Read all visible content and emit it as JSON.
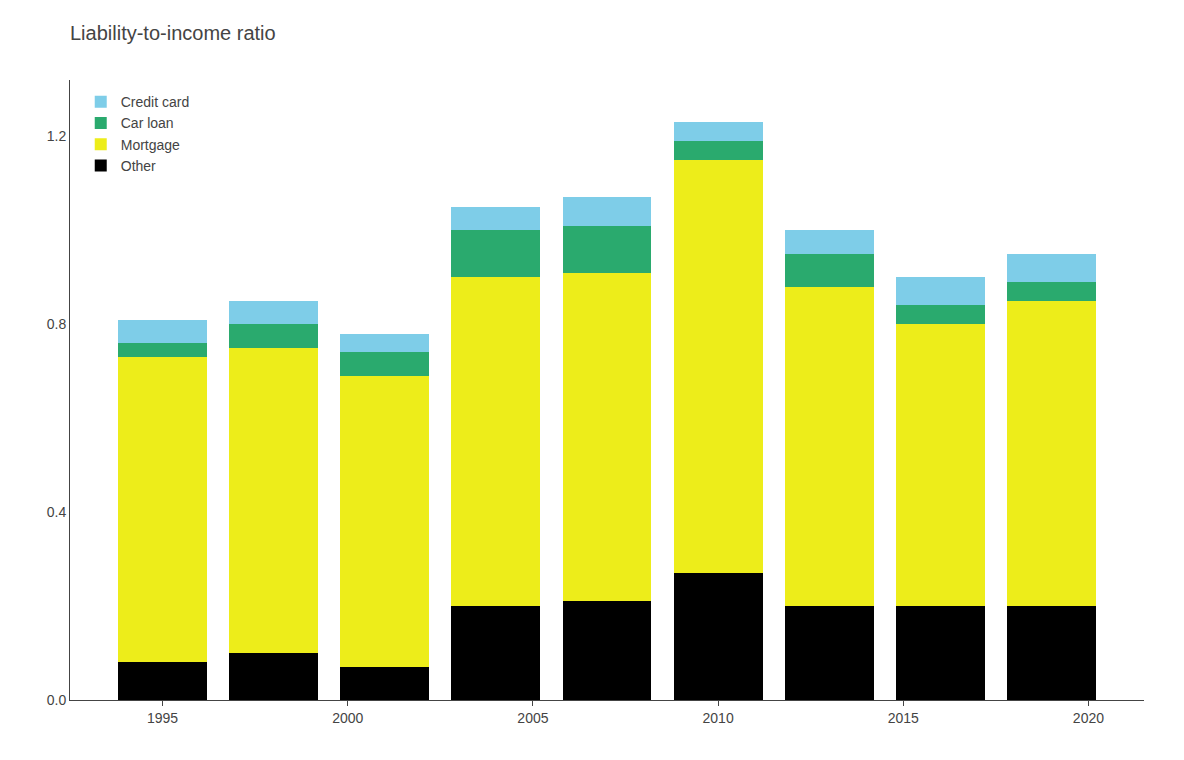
{
  "chart_data": {
    "type": "bar",
    "title": "Liability-to-income ratio",
    "x": [
      1995,
      1998,
      2001,
      2004,
      2007,
      2010,
      2013,
      2016,
      2019
    ],
    "series": [
      {
        "name": "Other",
        "color": "#000000",
        "values": [
          0.08,
          0.1,
          0.07,
          0.2,
          0.21,
          0.27,
          0.2,
          0.2,
          0.2
        ]
      },
      {
        "name": "Mortgage",
        "color": "#eded1a",
        "values": [
          0.65,
          0.65,
          0.62,
          0.7,
          0.7,
          0.88,
          0.68,
          0.6,
          0.65
        ]
      },
      {
        "name": "Car loan",
        "color": "#2aaa6e",
        "values": [
          0.03,
          0.05,
          0.05,
          0.1,
          0.1,
          0.04,
          0.07,
          0.04,
          0.04
        ]
      },
      {
        "name": "Credit card",
        "color": "#7ecde8",
        "values": [
          0.05,
          0.05,
          0.04,
          0.05,
          0.06,
          0.04,
          0.05,
          0.06,
          0.06
        ]
      }
    ],
    "stacked": true,
    "xlim": [
      1992.5,
      2021.5
    ],
    "xticks": [
      1995,
      2000,
      2005,
      2010,
      2015,
      2020
    ],
    "ylim": [
      0,
      1.32
    ],
    "yticks": [
      {
        "value": 0,
        "label": "0.0"
      },
      0.4,
      0.8,
      1.2
    ],
    "grid": false,
    "legend": "upper left"
  }
}
